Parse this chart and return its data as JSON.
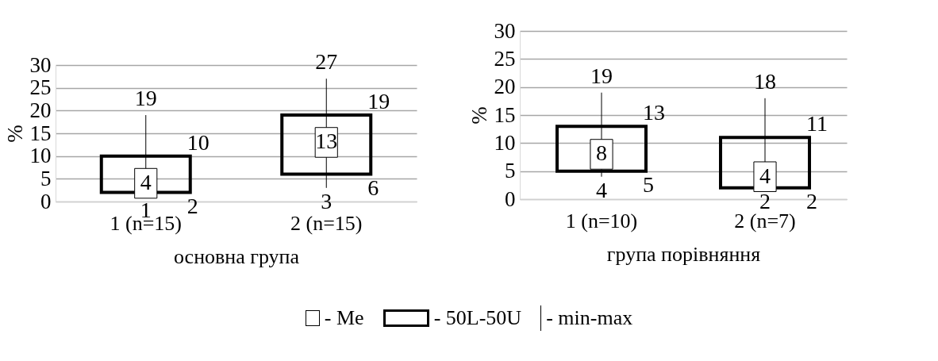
{
  "chart_data": [
    {
      "type": "box",
      "xlabel": "основна група",
      "ylabel": "%",
      "categories": [
        "1 (n=15)",
        "2 (n=15)"
      ],
      "boxes": [
        {
          "low": 1,
          "q1": 2,
          "median": 4,
          "q3": 10,
          "high": 19
        },
        {
          "low": 3,
          "q1": 6,
          "median": 13,
          "q3": 19,
          "high": 27
        }
      ],
      "ylim": [
        0,
        30
      ],
      "yticks": [
        0,
        5,
        10,
        15,
        20,
        25,
        30
      ],
      "grid": "y",
      "data_labels": true,
      "annotations": [
        "- Me",
        "- 50L-50U",
        "- min-max",
        {
          "text": "4",
          "x": "1 (n=15)",
          "y": 4
        },
        {
          "text": "19",
          "x": "1 (n=15)",
          "y": 19
        },
        {
          "text": "10",
          "x": "1 (n=15)",
          "y": 10
        },
        {
          "text": "1",
          "x": "1 (n=15)",
          "y": 1
        },
        {
          "text": "2",
          "x": "1 (n=15)",
          "y": 2
        },
        {
          "text": "13",
          "x": "2 (n=15)",
          "y": 13
        },
        {
          "text": "27",
          "x": "2 (n=15)",
          "y": 27
        },
        {
          "text": "19",
          "x": "2 (n=15)",
          "y": 19
        },
        {
          "text": "3",
          "x": "2 (n=15)",
          "y": 3
        },
        {
          "text": "6",
          "x": "2 (n=15)",
          "y": 6
        }
      ]
    },
    {
      "type": "box",
      "xlabel": "група порівняння",
      "ylabel": "%",
      "categories": [
        "1 (n=10)",
        "2 (n=7)"
      ],
      "boxes": [
        {
          "low": 4,
          "q1": 5,
          "median": 8,
          "q3": 13,
          "high": 19
        },
        {
          "low": 2,
          "q1": 2,
          "median": 4,
          "q3": 11,
          "high": 18
        }
      ],
      "ylim": [
        0,
        30
      ],
      "yticks": [
        0,
        5,
        10,
        15,
        20,
        25,
        30
      ],
      "grid": "y",
      "data_labels": true,
      "annotations": [
        {
          "text": "8",
          "x": "1 (n=10)",
          "y": 8
        },
        {
          "text": "19",
          "x": "1 (n=10)",
          "y": 19
        },
        {
          "text": "13",
          "x": "1 (n=10)",
          "y": 13
        },
        {
          "text": "4",
          "x": "1 (n=10)",
          "y": 4
        },
        {
          "text": "5",
          "x": "1 (n=10)",
          "y": 5
        },
        {
          "text": "4",
          "x": "2 (n=7)",
          "y": 4
        },
        {
          "text": "18",
          "x": "2 (n=7)",
          "y": 18
        },
        {
          "text": "11",
          "x": "2 (n=7)",
          "y": 11
        },
        {
          "text": "2",
          "x": "2 (n=7)",
          "y": 2
        },
        {
          "text": "2",
          "x": "2 (n=7)",
          "y": 2
        }
      ]
    }
  ]
}
